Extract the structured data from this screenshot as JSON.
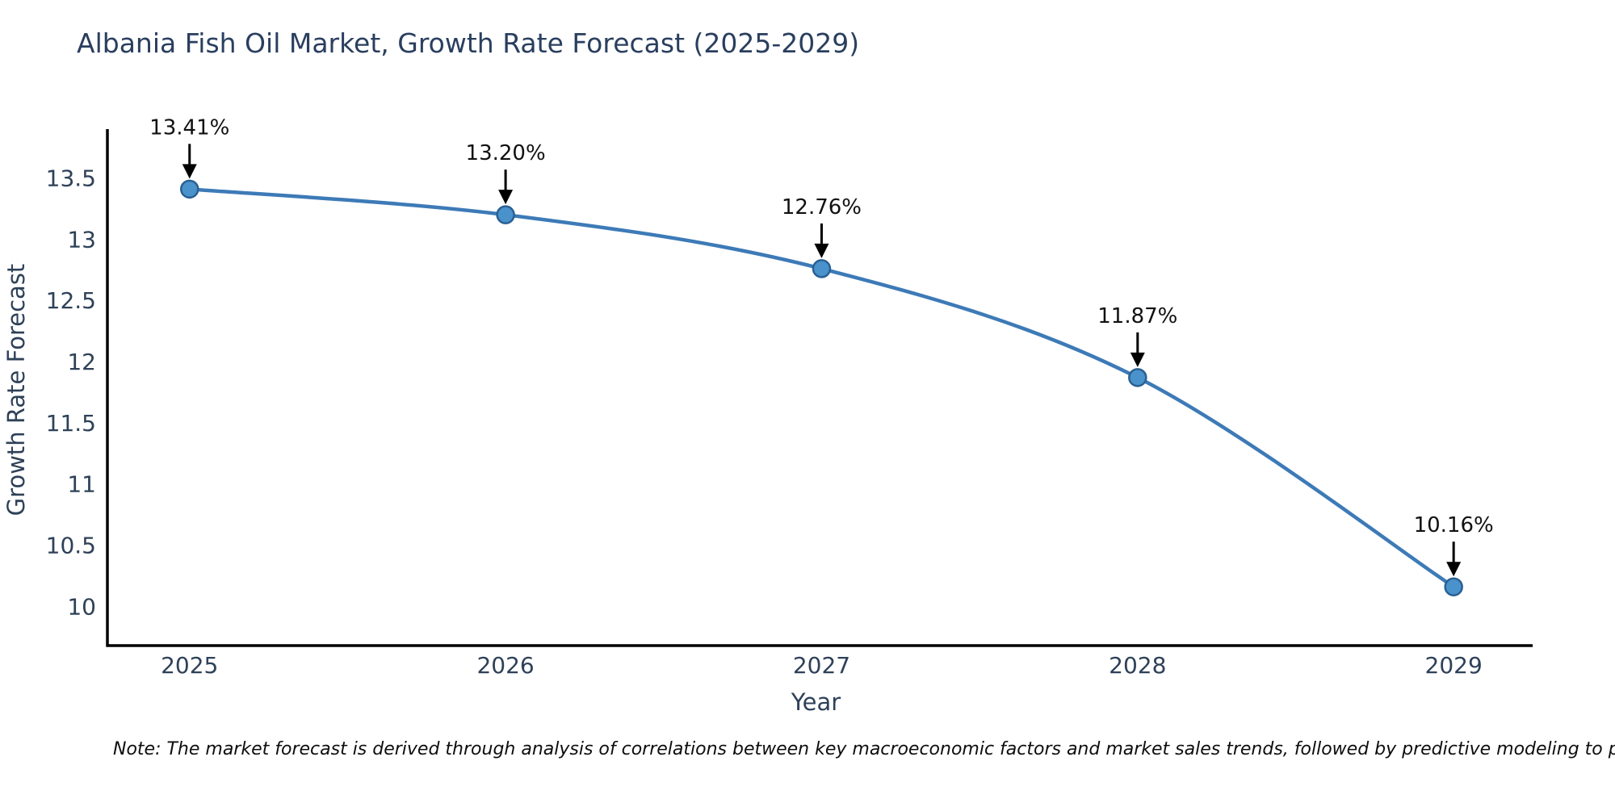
{
  "page": {
    "title": "Albania Fish Oil Market, Growth Rate Forecast (2025-2029)",
    "note": "Note: The market forecast is derived through analysis of correlations between key macroeconomic factors and market sales trends, followed by predictive modeling to project future sal"
  },
  "colors": {
    "background": "#ffffff",
    "title_text": "#2a3f5f",
    "axis_text": "#2e4158",
    "axis_line": "#000000",
    "line": "#3d7ab7",
    "marker_fill": "#4a92cb",
    "marker_edge": "#2a6093",
    "annotation_text": "#111111",
    "arrow": "#000000"
  },
  "chart_data": {
    "type": "line",
    "title": "Albania Fish Oil Market, Growth Rate Forecast (2025-2029)",
    "xlabel": "Year",
    "ylabel": "Growth Rate Forecast",
    "x": [
      2025,
      2026,
      2027,
      2028,
      2029
    ],
    "values": [
      13.41,
      13.2,
      12.76,
      11.87,
      10.16
    ],
    "point_labels": [
      "13.41%",
      "13.20%",
      "12.76%",
      "11.87%",
      "10.16%"
    ],
    "xticks": [
      "2025",
      "2026",
      "2027",
      "2028",
      "2029"
    ],
    "xtick_positions": [
      2025,
      2026,
      2027,
      2028,
      2029
    ],
    "yticks": [
      "13.5",
      "13",
      "12.5",
      "12",
      "11.5",
      "11",
      "10.5",
      "10"
    ],
    "ytick_positions": [
      13.5,
      13,
      12.5,
      12,
      11.5,
      11,
      10.5,
      10
    ],
    "xlim": [
      2024.74,
      2029.25
    ],
    "ylim": [
      9.68,
      13.9
    ],
    "grid": false,
    "legend": false,
    "marker": "circle",
    "annotation_style": "down-arrow"
  }
}
